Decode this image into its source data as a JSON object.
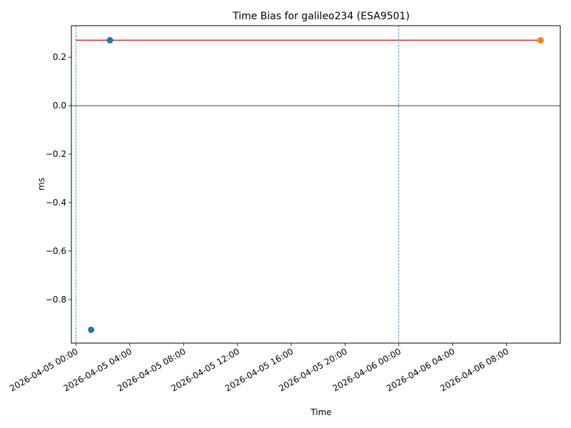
{
  "chart_data": {
    "type": "scatter",
    "title": "Time Bias for galileo234 (ESA9501)",
    "xlabel": "Time",
    "ylabel": "ms",
    "x_axis_type": "datetime",
    "xlim": [
      "2026-04-04T23:40:00",
      "2026-04-06T12:00:00"
    ],
    "ylim": [
      -0.98,
      0.33
    ],
    "x_ticks": [
      {
        "value": "2026-04-05T00:00:00",
        "label": "2026-04-05 00:00"
      },
      {
        "value": "2026-04-05T04:00:00",
        "label": "2026-04-05 04:00"
      },
      {
        "value": "2026-04-05T08:00:00",
        "label": "2026-04-05 08:00"
      },
      {
        "value": "2026-04-05T12:00:00",
        "label": "2026-04-05 12:00"
      },
      {
        "value": "2026-04-05T16:00:00",
        "label": "2026-04-05 16:00"
      },
      {
        "value": "2026-04-05T20:00:00",
        "label": "2026-04-05 20:00"
      },
      {
        "value": "2026-04-06T00:00:00",
        "label": "2026-04-06 00:00"
      },
      {
        "value": "2026-04-06T04:00:00",
        "label": "2026-04-06 04:00"
      },
      {
        "value": "2026-04-06T08:00:00",
        "label": "2026-04-06 08:00"
      }
    ],
    "y_ticks": [
      {
        "value": 0.2,
        "label": "0.2"
      },
      {
        "value": 0.0,
        "label": "0.0"
      },
      {
        "value": -0.2,
        "label": "−0.2"
      },
      {
        "value": -0.4,
        "label": "−0.4"
      },
      {
        "value": -0.6,
        "label": "−0.6"
      },
      {
        "value": -0.8,
        "label": "−0.8"
      }
    ],
    "grid": false,
    "series": [
      {
        "color": "#1f77b4",
        "points": [
          {
            "x": "2026-04-05T01:08:00",
            "y": -0.925
          },
          {
            "x": "2026-04-05T02:32:00",
            "y": 0.27
          }
        ]
      },
      {
        "color": "#ff7f0e",
        "points": [
          {
            "x": "2026-04-06T10:32:00",
            "y": 0.27
          }
        ]
      }
    ],
    "reference_lines": [
      {
        "orientation": "horizontal",
        "y": 0.27,
        "x_start": "2026-04-05T00:00:00",
        "x_end": "2026-04-06T10:32:00",
        "color": "#d62728",
        "style": "solid"
      },
      {
        "orientation": "horizontal",
        "y": 0.0,
        "color": "#000000",
        "style": "solid",
        "full_width": true
      },
      {
        "orientation": "vertical",
        "x": "2026-04-05T00:00:00",
        "color": "#1f77b4",
        "style": "dashed"
      },
      {
        "orientation": "vertical",
        "x": "2026-04-06T00:00:00",
        "color": "#1f77b4",
        "style": "dashed"
      }
    ]
  }
}
